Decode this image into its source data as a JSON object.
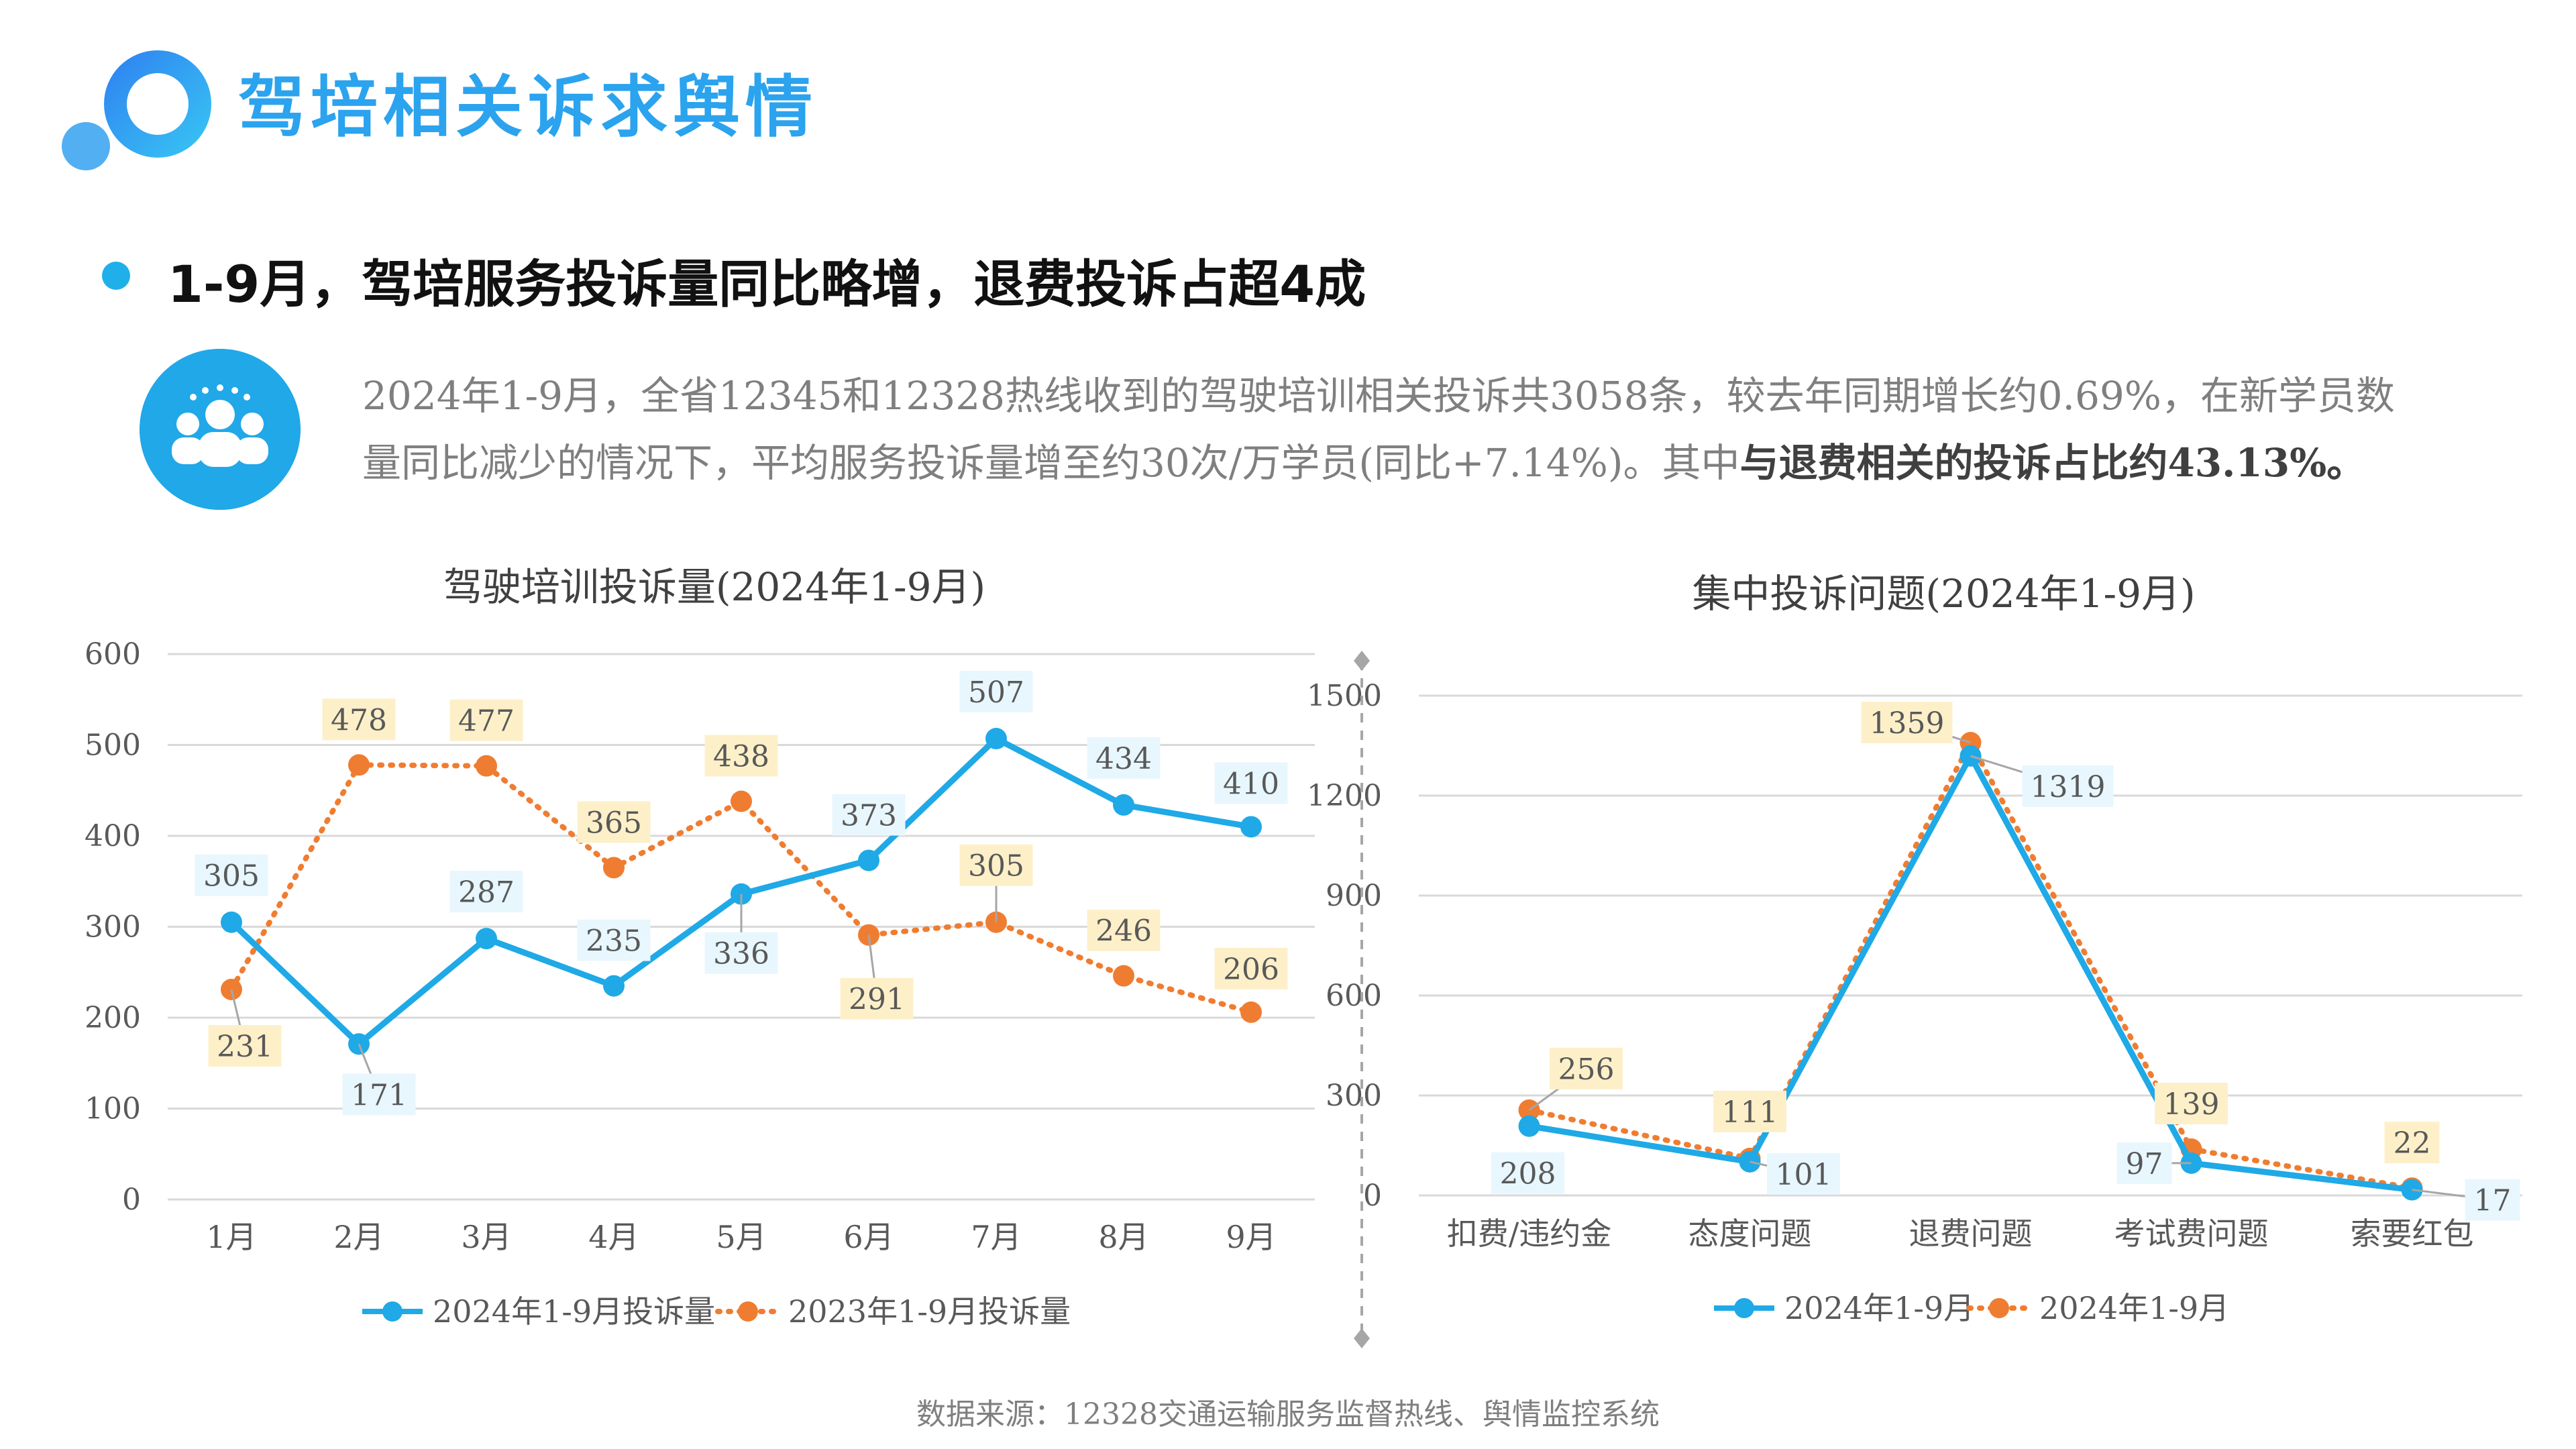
{
  "page": {
    "title": "驾培相关诉求舆情",
    "headline": "1-9月，驾培服务投诉量同比略增，退费投诉占超4成",
    "summary_line1": "2024年1-9月，全省12345和12328热线收到的驾驶培训相关投诉共3058条，较去年同期增长约0.69%，在新学员数",
    "summary_line2_a": "量同比减少的情况下，平均服务投诉量增至约30次/万学员(同比+7.14%)。其中",
    "summary_line2_b": "与退费相关的投诉占比约43.13%。",
    "source": "数据来源：12328交通运输服务监督热线、舆情监控系统",
    "colors": {
      "accent": "#2ba3ee",
      "blue_series": "#1fa9e6",
      "orange_series": "#ef7d31",
      "blue_label_bg": "#e8f7fd",
      "orange_label_bg": "#fdf0c9"
    },
    "icons": [
      "logo-circles-icon",
      "people-group-icon"
    ]
  },
  "chart_data": [
    {
      "type": "line",
      "title": "驾驶培训投诉量(2024年1-9月)",
      "categories": [
        "1月",
        "2月",
        "3月",
        "4月",
        "5月",
        "6月",
        "7月",
        "8月",
        "9月"
      ],
      "ylim": [
        0,
        600
      ],
      "yticks": [
        0,
        100,
        200,
        300,
        400,
        500,
        600
      ],
      "grid": true,
      "legend": "bottom",
      "series": [
        {
          "name": "2024年1-9月投诉量",
          "values": [
            305,
            171,
            287,
            235,
            336,
            373,
            507,
            434,
            410
          ],
          "color": "#1fa9e6",
          "style": "solid"
        },
        {
          "name": "2023年1-9月投诉量",
          "values": [
            231,
            478,
            477,
            365,
            438,
            291,
            305,
            246,
            206
          ],
          "color": "#ef7d31",
          "style": "dotted"
        }
      ]
    },
    {
      "type": "line",
      "title": "集中投诉问题(2024年1-9月)",
      "categories": [
        "扣费/违约金",
        "态度问题",
        "退费问题",
        "考试费问题",
        "索要红包"
      ],
      "ylim": [
        0,
        1500
      ],
      "yticks": [
        0,
        300,
        600,
        900,
        1200,
        1500
      ],
      "grid": true,
      "legend": "bottom",
      "series": [
        {
          "name": "2024年1-9月",
          "values": [
            208,
            101,
            1319,
            97,
            17
          ],
          "color": "#1fa9e6",
          "style": "solid"
        },
        {
          "name": "2024年1-9月",
          "values": [
            256,
            111,
            1359,
            139,
            22
          ],
          "color": "#ef7d31",
          "style": "dotted"
        }
      ]
    }
  ]
}
